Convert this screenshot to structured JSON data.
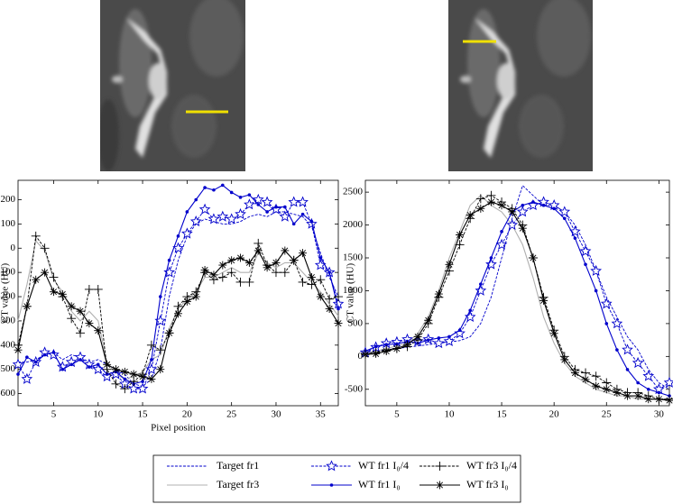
{
  "chart_data": [
    {
      "type": "line",
      "y_label": "CT value (HU)",
      "x_label": "Pixel position",
      "xlim": [
        1,
        37
      ],
      "ylim": [
        -650,
        280
      ],
      "xticks": [
        5,
        10,
        15,
        20,
        25,
        30,
        35
      ],
      "yticks": [
        -600,
        -500,
        -400,
        -300,
        -200,
        -100,
        0,
        100,
        200
      ],
      "x": [
        1,
        2,
        3,
        4,
        5,
        6,
        7,
        8,
        9,
        10,
        11,
        12,
        13,
        14,
        15,
        16,
        17,
        18,
        19,
        20,
        21,
        22,
        23,
        24,
        25,
        26,
        27,
        28,
        29,
        30,
        31,
        32,
        33,
        34,
        35,
        36,
        37
      ],
      "series": [
        {
          "name": "Target fr1",
          "color": "#0000cc",
          "dash": true,
          "marker": "none",
          "values": [
            -470,
            -470,
            -460,
            -440,
            -430,
            -460,
            -440,
            -450,
            -470,
            -460,
            -480,
            -500,
            -520,
            -560,
            -570,
            -540,
            -420,
            -200,
            -50,
            50,
            100,
            120,
            110,
            100,
            100,
            110,
            130,
            140,
            130,
            150,
            150,
            140,
            130,
            90,
            -20,
            -120,
            -200
          ]
        },
        {
          "name": "Target fr3",
          "color": "#b0b0b0",
          "dash": false,
          "marker": "none",
          "values": [
            -300,
            -150,
            30,
            -10,
            -130,
            -180,
            -260,
            -300,
            -260,
            -300,
            -470,
            -520,
            -540,
            -530,
            -510,
            -460,
            -440,
            -330,
            -250,
            -210,
            -180,
            -120,
            -120,
            -100,
            -80,
            -100,
            -100,
            -20,
            -60,
            -80,
            -60,
            -60,
            -100,
            -140,
            -180,
            -230,
            -280
          ]
        },
        {
          "name": "WT fr1 I₀/4",
          "color": "#0000cc",
          "dash": true,
          "marker": "star",
          "values": [
            -480,
            -540,
            -470,
            -430,
            -440,
            -490,
            -470,
            -450,
            -480,
            -500,
            -530,
            -520,
            -560,
            -580,
            -580,
            -500,
            -300,
            -100,
            0,
            60,
            110,
            160,
            120,
            130,
            120,
            140,
            180,
            200,
            190,
            160,
            130,
            190,
            190,
            100,
            -70,
            -100,
            -230
          ]
        },
        {
          "name": "WT fr1 I₀",
          "color": "#0000cc",
          "dash": false,
          "marker": "dot",
          "values": [
            -520,
            -450,
            -470,
            -440,
            -430,
            -500,
            -480,
            -460,
            -490,
            -480,
            -520,
            -510,
            -540,
            -560,
            -550,
            -460,
            -200,
            -50,
            50,
            150,
            200,
            250,
            240,
            260,
            230,
            210,
            220,
            180,
            150,
            170,
            170,
            100,
            140,
            110,
            -40,
            -100,
            -250
          ]
        },
        {
          "name": "WT fr3 I₀/4",
          "color": "#000000",
          "dash": true,
          "marker": "plus",
          "values": [
            -400,
            -240,
            50,
            0,
            -120,
            -200,
            -290,
            -350,
            -170,
            -170,
            -500,
            -560,
            -580,
            -550,
            -520,
            -400,
            -420,
            -350,
            -240,
            -200,
            -180,
            -100,
            -130,
            -120,
            -100,
            -140,
            -140,
            20,
            -70,
            -100,
            -100,
            -50,
            -140,
            -150,
            -130,
            -210,
            -200
          ]
        },
        {
          "name": "WT fr3 I₀",
          "color": "#000000",
          "dash": false,
          "marker": "asterisk",
          "values": [
            -420,
            -240,
            -130,
            -100,
            -180,
            -190,
            -240,
            -260,
            -310,
            -340,
            -480,
            -500,
            -510,
            -520,
            -530,
            -540,
            -500,
            -350,
            -270,
            -220,
            -200,
            -90,
            -110,
            -70,
            -50,
            -40,
            -60,
            -10,
            -80,
            -60,
            -10,
            -50,
            -20,
            -120,
            -200,
            -250,
            -310
          ]
        }
      ]
    },
    {
      "type": "line",
      "y_label": "CT value (HU)",
      "xlim": [
        2,
        31
      ],
      "ylim": [
        -750,
        2680
      ],
      "xticks": [
        5,
        10,
        15,
        20,
        25,
        30
      ],
      "yticks": [
        -500,
        0,
        500,
        1000,
        1500,
        2000,
        2500
      ],
      "x": [
        2,
        3,
        4,
        5,
        6,
        7,
        8,
        9,
        10,
        11,
        12,
        13,
        14,
        15,
        16,
        17,
        18,
        19,
        20,
        21,
        22,
        23,
        24,
        25,
        26,
        27,
        28,
        29,
        30,
        31
      ],
      "series": [
        {
          "name": "Target fr1",
          "color": "#0000cc",
          "dash": true,
          "marker": "none",
          "values": [
            50,
            80,
            100,
            120,
            140,
            160,
            180,
            200,
            220,
            240,
            300,
            500,
            900,
            1500,
            2100,
            2600,
            2450,
            2300,
            2300,
            2200,
            2000,
            1700,
            1300,
            900,
            600,
            300,
            100,
            -200,
            -400,
            -500
          ]
        },
        {
          "name": "Target fr3",
          "color": "#b0b0b0",
          "dash": false,
          "marker": "none",
          "values": [
            50,
            80,
            120,
            160,
            200,
            350,
            600,
            1000,
            1500,
            1900,
            2300,
            2450,
            2300,
            2200,
            2000,
            1700,
            1200,
            600,
            200,
            -100,
            -300,
            -400,
            -500,
            -550,
            -600,
            -600,
            -650,
            -650,
            -650,
            -650
          ]
        },
        {
          "name": "WT fr1 I₀/4",
          "color": "#0000cc",
          "dash": true,
          "marker": "star",
          "values": [
            60,
            140,
            200,
            220,
            260,
            230,
            260,
            200,
            230,
            350,
            600,
            1000,
            1400,
            1700,
            2000,
            2200,
            2300,
            2350,
            2300,
            2200,
            1900,
            1600,
            1300,
            800,
            500,
            100,
            -100,
            -300,
            -500,
            -400
          ]
        },
        {
          "name": "WT fr1 I₀",
          "color": "#0000cc",
          "dash": false,
          "marker": "dot",
          "values": [
            80,
            150,
            180,
            190,
            230,
            200,
            250,
            280,
            300,
            400,
            700,
            1100,
            1500,
            1900,
            2200,
            2300,
            2350,
            2300,
            2250,
            2100,
            1800,
            1400,
            1000,
            500,
            100,
            -200,
            -400,
            -500,
            -550,
            -600
          ]
        },
        {
          "name": "WT fr3 I₀/4",
          "color": "#000000",
          "dash": true,
          "marker": "plus",
          "values": [
            40,
            60,
            100,
            120,
            150,
            250,
            500,
            900,
            1300,
            1700,
            2100,
            2400,
            2450,
            2350,
            2250,
            2000,
            1500,
            900,
            400,
            0,
            -200,
            -250,
            -300,
            -400,
            -500,
            -550,
            -550,
            -600,
            -650,
            -650
          ]
        },
        {
          "name": "WT fr3 I₀",
          "color": "#000000",
          "dash": false,
          "marker": "asterisk",
          "values": [
            30,
            40,
            80,
            120,
            180,
            300,
            550,
            950,
            1400,
            1850,
            2150,
            2250,
            2350,
            2300,
            2200,
            1950,
            1500,
            850,
            350,
            -50,
            -250,
            -350,
            -450,
            -500,
            -550,
            -600,
            -600,
            -650,
            -650,
            -670
          ]
        }
      ]
    }
  ]
}
